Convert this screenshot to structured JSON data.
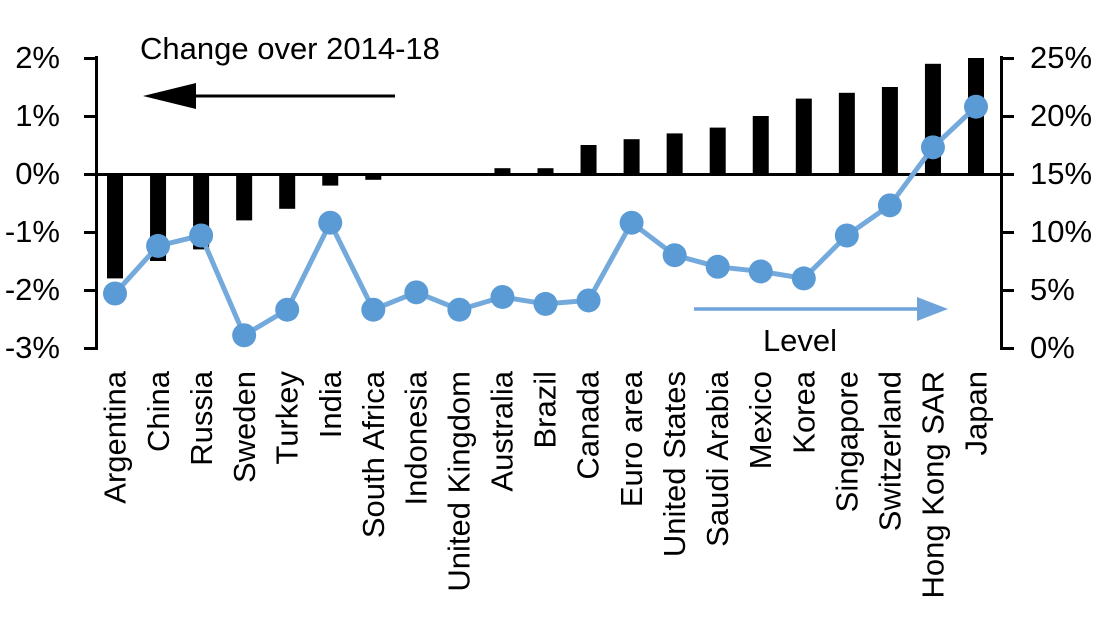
{
  "annotations": {
    "change_label": "Change over 2014-18",
    "level_label": "Level"
  },
  "left_axis": {
    "tick_labels": [
      "2%",
      "1%",
      "0%",
      "-1%",
      "-2%",
      "-3%"
    ],
    "min": -3,
    "max": 2
  },
  "right_axis": {
    "tick_labels": [
      "25%",
      "20%",
      "15%",
      "10%",
      "5%",
      "0%"
    ],
    "min": 0,
    "max": 25
  },
  "colors": {
    "bar": "#000000",
    "line": "#74A9DC",
    "marker": "#5B9BD5",
    "arrow_black": "#000000",
    "arrow_blue": "#6FA3DC",
    "axis": "#000000"
  },
  "chart_data": {
    "type": "bar",
    "subtype": "combo-bar-line-dual-axis",
    "categories": [
      "Argentina",
      "China",
      "Russia",
      "Sweden",
      "Turkey",
      "India",
      "South Africa",
      "Indonesia",
      "United Kingdom",
      "Australia",
      "Brazil",
      "Canada",
      "Euro area",
      "United States",
      "Saudi Arabia",
      "Mexico",
      "Korea",
      "Singapore",
      "Switzerland",
      "Hong Kong SAR",
      "Japan"
    ],
    "series": [
      {
        "name": "Change over 2014-18",
        "type": "bar",
        "axis": "left",
        "unit": "%",
        "values": [
          -1.8,
          -1.5,
          -1.3,
          -0.8,
          -0.6,
          -0.2,
          -0.1,
          0.0,
          0.0,
          0.1,
          0.1,
          0.5,
          0.6,
          0.7,
          0.8,
          1.0,
          1.3,
          1.4,
          1.5,
          1.9,
          2.0
        ]
      },
      {
        "name": "Level",
        "type": "line",
        "axis": "right",
        "unit": "%",
        "values": [
          4.7,
          8.8,
          9.7,
          1.1,
          3.3,
          10.8,
          3.3,
          4.8,
          3.3,
          4.4,
          3.8,
          4.1,
          10.8,
          8.0,
          7.0,
          6.6,
          6.0,
          9.7,
          12.3,
          17.3,
          20.8
        ]
      }
    ],
    "left_axis_range": [
      -3,
      2
    ],
    "right_axis_range": [
      0,
      25
    ],
    "grid": false,
    "legend_position": "none"
  }
}
